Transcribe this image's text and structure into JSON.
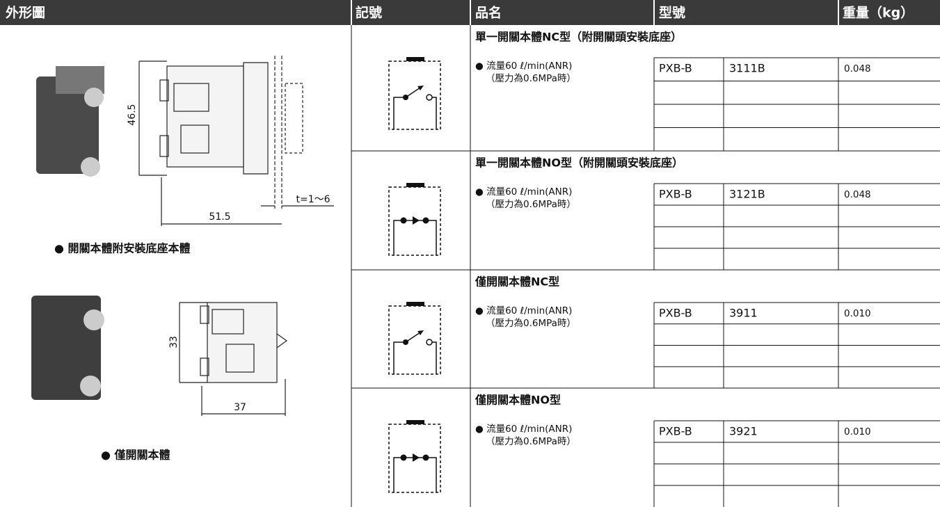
{
  "header": {
    "columns": [
      "外形圖",
      "記號",
      "品名",
      "型號",
      "重量（kg）"
    ]
  },
  "drawings": [
    {
      "dimensions": [
        "46.5",
        "51.5",
        "t=1～6"
      ],
      "caption": "● 開關本體附安裝底座本體"
    },
    {
      "dimensions": [
        "33",
        "37"
      ],
      "caption": "● 僅開關本體"
    }
  ],
  "products": [
    {
      "title": "單一開關本體NC型（附開關頭安裝底座）",
      "spec": [
        "● 流量60 ℓ/min(ANR)",
        "（壓力為0.6MPa時）"
      ],
      "series": "PXB-B",
      "model": "3111B",
      "weight": "0.048"
    },
    {
      "title": "單一開關本體NO型（附開關頭安裝底座）",
      "spec": [
        "● 流量60 ℓ/min(ANR)",
        "（壓力為0.6MPa時）"
      ],
      "series": "PXB-B",
      "model": "3121B",
      "weight": "0.048"
    },
    {
      "title": "僅開關本體NC型",
      "spec": [
        "● 流量60 ℓ/min(ANR)",
        "（壓力為0.6MPa時）"
      ],
      "series": "PXB-B",
      "model": "3911",
      "weight": "0.010"
    },
    {
      "title": "僅開關本體NO型",
      "spec": [
        "● 流量60 ℓ/min(ANR)",
        "（壓力為0.6MPa時）"
      ],
      "series": "PXB-B",
      "model": "3921",
      "weight": "0.010"
    }
  ]
}
